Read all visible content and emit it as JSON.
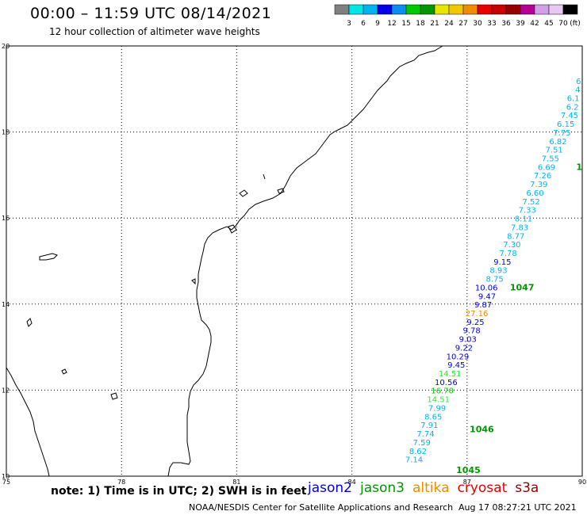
{
  "header": {
    "title": "00:00 – 11:59 UTC 08/14/2021",
    "subtitle": "12 hour collection of altimeter wave heights"
  },
  "legend": {
    "colors": [
      "#808080",
      "#00e6e6",
      "#00b4f0",
      "#0000e6",
      "#0a8cf0",
      "#00c800",
      "#009600",
      "#e6e600",
      "#f0c800",
      "#f08c00",
      "#e60000",
      "#c80000",
      "#960000",
      "#b40096",
      "#d2a0e6",
      "#e6c8f0",
      "#000000"
    ],
    "labels": [
      "3",
      "6",
      "9",
      "12",
      "15",
      "18",
      "21",
      "24",
      "27",
      "30",
      "33",
      "36",
      "39",
      "42",
      "45",
      "70",
      "(ft)"
    ]
  },
  "chart_data": {
    "type": "scatter",
    "title": "00:00 – 11:59 UTC 08/14/2021",
    "subtitle": "12 hour collection of altimeter wave heights",
    "xlabel": "",
    "ylabel": "",
    "xlim": [
      75,
      90
    ],
    "ylim": [
      10,
      20
    ],
    "x_ticks": [
      75,
      78,
      81,
      84,
      87,
      90
    ],
    "y_ticks": [
      10,
      12,
      14,
      16,
      18,
      20
    ],
    "grid": true,
    "points": [
      {
        "lon": 89.97,
        "lat": 19.12,
        "label": "6",
        "sat": "jason2",
        "color": "#00b4f0"
      },
      {
        "lon": 89.95,
        "lat": 18.92,
        "label": "4",
        "sat": "jason2",
        "color": "#00b4f0"
      },
      {
        "lon": 89.93,
        "lat": 18.72,
        "label": "6.1",
        "sat": "jason2",
        "color": "#00b4f0"
      },
      {
        "lon": 89.91,
        "lat": 18.52,
        "label": "6.2",
        "sat": "jason2",
        "color": "#00b4f0"
      },
      {
        "lon": 89.9,
        "lat": 18.32,
        "label": "7.45",
        "sat": "jason2",
        "color": "#00b4f0"
      },
      {
        "lon": 89.8,
        "lat": 18.12,
        "label": "6.15",
        "sat": "jason2",
        "color": "#00b4f0"
      },
      {
        "lon": 89.7,
        "lat": 17.92,
        "label": "7.75",
        "sat": "jason2",
        "color": "#00b4f0"
      },
      {
        "lon": 89.6,
        "lat": 17.72,
        "label": "6.82",
        "sat": "jason2",
        "color": "#00b4f0"
      },
      {
        "lon": 89.5,
        "lat": 17.52,
        "label": "7.51",
        "sat": "jason2",
        "color": "#00b4f0"
      },
      {
        "lon": 89.4,
        "lat": 17.32,
        "label": "7.55",
        "sat": "jason2",
        "color": "#00b4f0"
      },
      {
        "lon": 89.3,
        "lat": 17.12,
        "label": "6.69",
        "sat": "jason2",
        "color": "#00b4f0"
      },
      {
        "lon": 89.2,
        "lat": 16.92,
        "label": "7.26",
        "sat": "jason2",
        "color": "#00b4f0"
      },
      {
        "lon": 89.1,
        "lat": 16.72,
        "label": "7.39",
        "sat": "jason2",
        "color": "#00b4f0"
      },
      {
        "lon": 89.0,
        "lat": 16.52,
        "label": "6.60",
        "sat": "jason2",
        "color": "#00b4f0"
      },
      {
        "lon": 88.9,
        "lat": 16.32,
        "label": "7.52",
        "sat": "jason2",
        "color": "#00b4f0"
      },
      {
        "lon": 88.8,
        "lat": 16.12,
        "label": "7.33",
        "sat": "jason2",
        "color": "#00b4f0"
      },
      {
        "lon": 88.7,
        "lat": 15.92,
        "label": "8.11",
        "sat": "jason2",
        "color": "#00b4f0"
      },
      {
        "lon": 88.6,
        "lat": 15.72,
        "label": "7.83",
        "sat": "jason2",
        "color": "#00b4f0"
      },
      {
        "lon": 88.5,
        "lat": 15.52,
        "label": "8.77",
        "sat": "jason2",
        "color": "#00b4f0"
      },
      {
        "lon": 88.4,
        "lat": 15.32,
        "label": "7.30",
        "sat": "jason2",
        "color": "#00b4f0"
      },
      {
        "lon": 88.3,
        "lat": 15.12,
        "label": "7.78",
        "sat": "jason2",
        "color": "#00b4f0"
      },
      {
        "lon": 88.15,
        "lat": 14.92,
        "label": "9.15",
        "sat": "jason2",
        "color": "#0000e6"
      },
      {
        "lon": 88.05,
        "lat": 14.72,
        "label": "8.93",
        "sat": "jason2",
        "color": "#00b4f0"
      },
      {
        "lon": 87.95,
        "lat": 14.52,
        "label": "8.75",
        "sat": "jason2",
        "color": "#00b4f0"
      },
      {
        "lon": 87.8,
        "lat": 14.32,
        "label": "10.06",
        "sat": "jason2",
        "color": "#0000e6"
      },
      {
        "lon": 87.75,
        "lat": 14.12,
        "label": "9.47",
        "sat": "jason2",
        "color": "#0000e6"
      },
      {
        "lon": 87.65,
        "lat": 13.92,
        "label": "9.87",
        "sat": "jason2",
        "color": "#0000e6"
      },
      {
        "lon": 87.55,
        "lat": 13.72,
        "label": "27.16",
        "sat": "jason2",
        "color": "#f08c00"
      },
      {
        "lon": 87.45,
        "lat": 13.52,
        "label": "9.25",
        "sat": "jason2",
        "color": "#0000e6"
      },
      {
        "lon": 87.35,
        "lat": 13.32,
        "label": "9.78",
        "sat": "jason2",
        "color": "#0000e6"
      },
      {
        "lon": 87.25,
        "lat": 13.12,
        "label": "9.03",
        "sat": "jason2",
        "color": "#0000e6"
      },
      {
        "lon": 87.15,
        "lat": 12.92,
        "label": "9.22",
        "sat": "jason2",
        "color": "#0000e6"
      },
      {
        "lon": 87.05,
        "lat": 12.72,
        "label": "10.29",
        "sat": "jason2",
        "color": "#0000e6"
      },
      {
        "lon": 86.95,
        "lat": 12.52,
        "label": "9.45",
        "sat": "jason2",
        "color": "#0000e6"
      },
      {
        "lon": 86.85,
        "lat": 12.32,
        "label": "14.51",
        "sat": "jason2",
        "color": "#32e632"
      },
      {
        "lon": 86.75,
        "lat": 12.12,
        "label": "10.56",
        "sat": "jason2",
        "color": "#0000e6"
      },
      {
        "lon": 86.65,
        "lat": 11.92,
        "label": "16.70",
        "sat": "jason2",
        "color": "#00c800"
      },
      {
        "lon": 86.55,
        "lat": 11.72,
        "label": "14.51",
        "sat": "jason2",
        "color": "#32e632"
      },
      {
        "lon": 86.45,
        "lat": 11.52,
        "label": "7.99",
        "sat": "jason2",
        "color": "#00b4f0"
      },
      {
        "lon": 86.35,
        "lat": 11.32,
        "label": "8.65",
        "sat": "jason2",
        "color": "#00b4f0"
      },
      {
        "lon": 86.25,
        "lat": 11.12,
        "label": "7.91",
        "sat": "jason2",
        "color": "#00b4f0"
      },
      {
        "lon": 86.15,
        "lat": 10.92,
        "label": "7.74",
        "sat": "jason2",
        "color": "#00b4f0"
      },
      {
        "lon": 86.05,
        "lat": 10.72,
        "label": "7.59",
        "sat": "jason2",
        "color": "#00b4f0"
      },
      {
        "lon": 85.95,
        "lat": 10.52,
        "label": "8.62",
        "sat": "jason2",
        "color": "#00b4f0"
      },
      {
        "lon": 85.85,
        "lat": 10.32,
        "label": "7.14",
        "sat": "jason2",
        "color": "#00b4f0"
      }
    ],
    "time_labels": [
      {
        "lon": 88.75,
        "lat": 14.32,
        "label": "1047",
        "color": "#009600"
      },
      {
        "lon": 87.7,
        "lat": 11.02,
        "label": "1046",
        "color": "#009600"
      },
      {
        "lon": 87.35,
        "lat": 10.07,
        "label": "1045",
        "color": "#009600"
      },
      {
        "lon": 90.0,
        "lat": 17.12,
        "label": "1",
        "color": "#009600"
      }
    ]
  },
  "footer": {
    "note": "note: 1) Time is in UTC; 2) SWH is in feet",
    "satellites": [
      {
        "name": "jason2",
        "color": "#0000e6"
      },
      {
        "name": "jason3",
        "color": "#009600"
      },
      {
        "name": "altika",
        "color": "#f08c00"
      },
      {
        "name": "cryosat",
        "color": "#e60000"
      },
      {
        "name": "s3a",
        "color": "#960000"
      }
    ],
    "credit": "NOAA/NESDIS Center for Satellite Applications and Research",
    "timestamp": "Aug 17 08:27:21 UTC 2021"
  }
}
